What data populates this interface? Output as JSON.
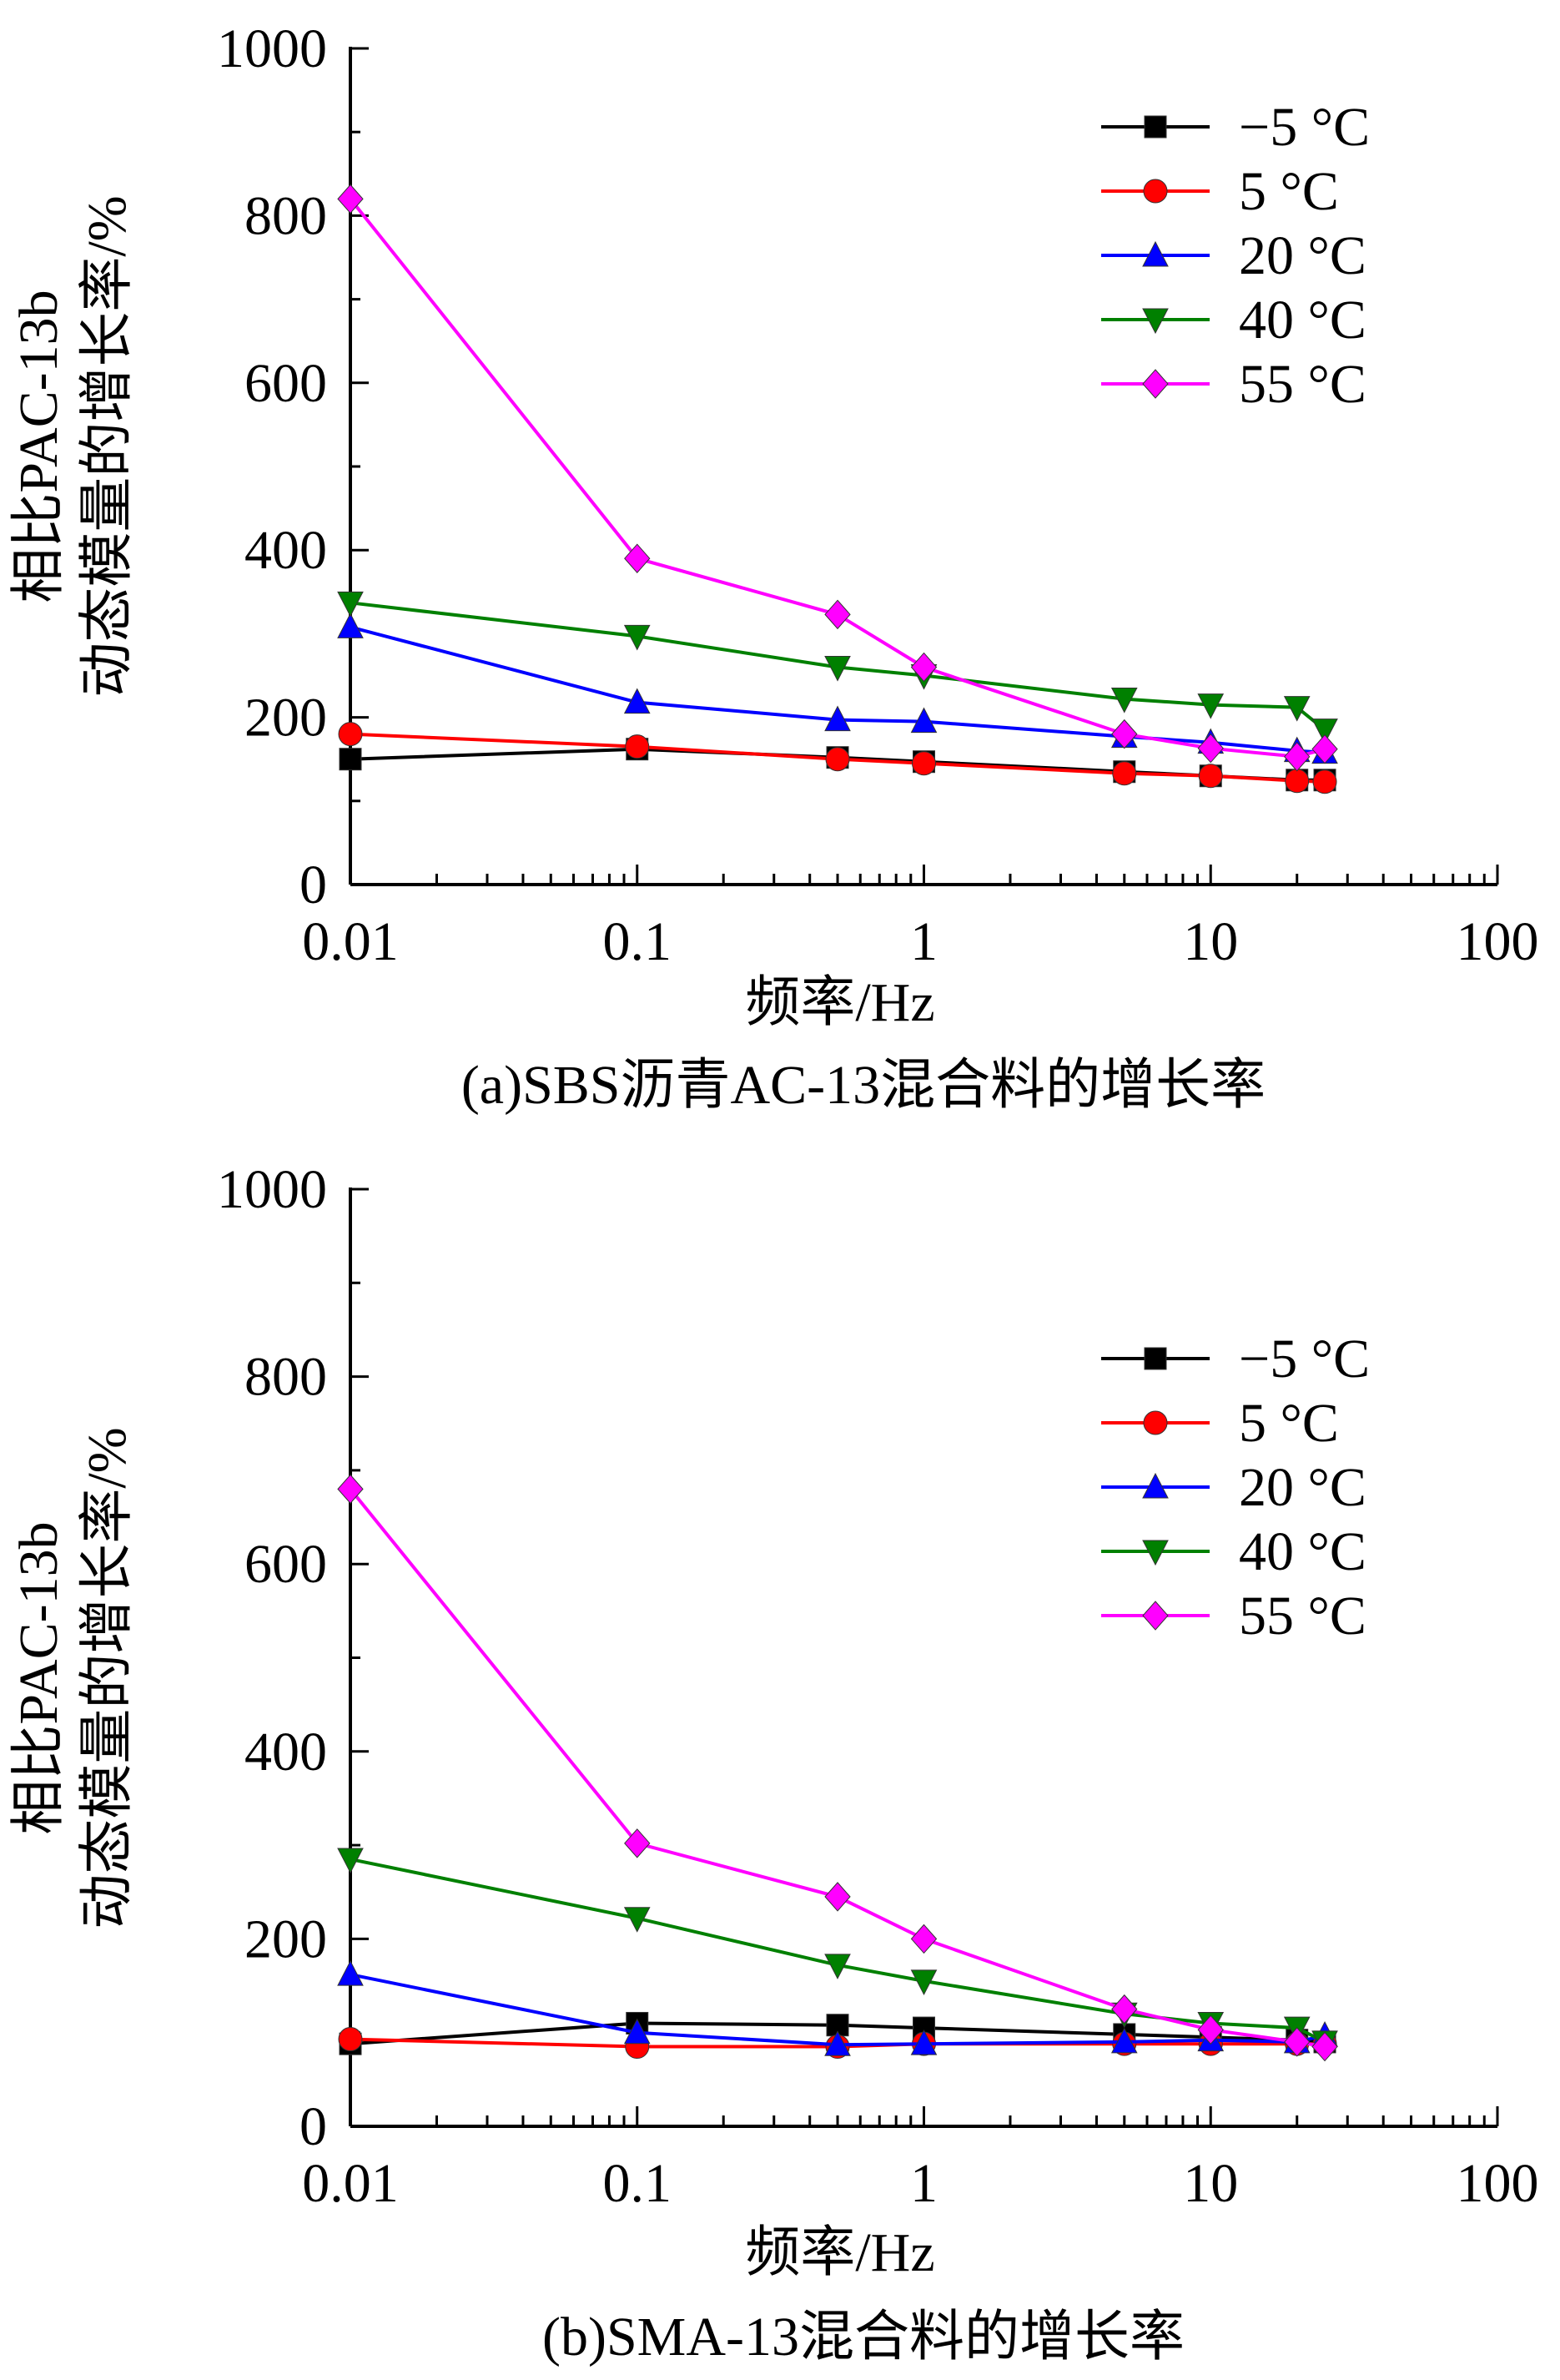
{
  "charts": [
    {
      "caption": "(a)SBS沥青AC-13混合料的增长率",
      "xlabel": "频率/Hz",
      "ylabel_line1": "相比PAC-13b",
      "ylabel_line2": "动态模量的增长率/%"
    },
    {
      "caption": "(b)SMA-13混合料的增长率",
      "xlabel": "频率/Hz",
      "ylabel_line1": "相比PAC-13b",
      "ylabel_line2": "动态模量的增长率/%"
    }
  ],
  "chart_data": [
    {
      "type": "line",
      "title": "(a)SBS沥青AC-13混合料的增长率",
      "xlabel": "频率/Hz",
      "ylabel": "相比PAC-13b 动态模量的增长率/%",
      "xscale": "log",
      "xlim": [
        0.01,
        100
      ],
      "ylim": [
        0,
        1000
      ],
      "xticks": [
        "0.01",
        "0.1",
        "1",
        "10",
        "100"
      ],
      "yticks": [
        "0",
        "200",
        "400",
        "600",
        "800",
        "1000"
      ],
      "legend_position": "top-right",
      "grid": false,
      "x": [
        0.01,
        0.1,
        0.5,
        1,
        5,
        10,
        20,
        25
      ],
      "series": [
        {
          "name": "−5 °C",
          "color": "#000000",
          "marker": "square",
          "values": [
            150,
            162,
            152,
            147,
            135,
            130,
            125,
            125
          ]
        },
        {
          "name": "5 °C",
          "color": "#ff0000",
          "marker": "circle",
          "values": [
            180,
            165,
            150,
            145,
            133,
            130,
            124,
            123
          ]
        },
        {
          "name": "20 °C",
          "color": "#0000ff",
          "marker": "triangle-up",
          "values": [
            308,
            218,
            197,
            195,
            177,
            170,
            160,
            158
          ]
        },
        {
          "name": "40 °C",
          "color": "#008000",
          "marker": "triangle-down",
          "values": [
            337,
            297,
            260,
            250,
            222,
            215,
            212,
            185
          ]
        },
        {
          "name": "55 °C",
          "color": "#ff00ff",
          "marker": "diamond",
          "values": [
            820,
            390,
            323,
            260,
            180,
            163,
            153,
            162
          ]
        }
      ]
    },
    {
      "type": "line",
      "title": "(b)SMA-13混合料的增长率",
      "xlabel": "频率/Hz",
      "ylabel": "相比PAC-13b 动态模量的增长率/%",
      "xscale": "log",
      "xlim": [
        0.01,
        100
      ],
      "ylim": [
        0,
        1000
      ],
      "xticks": [
        "0.01",
        "0.1",
        "1",
        "10",
        "100"
      ],
      "yticks": [
        "0",
        "200",
        "400",
        "600",
        "800",
        "1000"
      ],
      "legend_position": "top-right",
      "grid": false,
      "x": [
        0.01,
        0.1,
        0.5,
        1,
        5,
        10,
        20,
        25
      ],
      "series": [
        {
          "name": "−5 °C",
          "color": "#000000",
          "marker": "square",
          "values": [
            88,
            110,
            108,
            105,
            98,
            95,
            92,
            90
          ]
        },
        {
          "name": "5 °C",
          "color": "#ff0000",
          "marker": "circle",
          "values": [
            93,
            85,
            85,
            88,
            88,
            88,
            88,
            88
          ]
        },
        {
          "name": "20 °C",
          "color": "#0000ff",
          "marker": "triangle-up",
          "values": [
            162,
            100,
            87,
            88,
            90,
            92,
            90,
            97
          ]
        },
        {
          "name": "40 °C",
          "color": "#008000",
          "marker": "triangle-down",
          "values": [
            285,
            222,
            172,
            155,
            120,
            110,
            105,
            90
          ]
        },
        {
          "name": "55 °C",
          "color": "#ff00ff",
          "marker": "diamond",
          "values": [
            680,
            302,
            245,
            200,
            125,
            103,
            90,
            85
          ]
        }
      ]
    }
  ]
}
